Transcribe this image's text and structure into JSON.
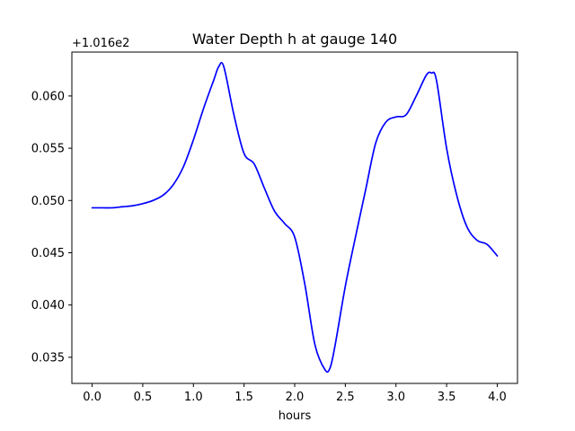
{
  "chart_data": {
    "type": "line",
    "title": "Water Depth h at gauge 140",
    "xlabel": "hours",
    "ylabel": "",
    "y_offset_label": "+1.016e2",
    "xlim": [
      -0.2,
      4.2
    ],
    "ylim": [
      0.0325,
      0.0642
    ],
    "x_ticks": [
      0.0,
      0.5,
      1.0,
      1.5,
      2.0,
      2.5,
      3.0,
      3.5,
      4.0
    ],
    "x_tick_labels": [
      "0.0",
      "0.5",
      "1.0",
      "1.5",
      "2.0",
      "2.5",
      "3.0",
      "3.5",
      "4.0"
    ],
    "y_ticks": [
      0.035,
      0.04,
      0.045,
      0.05,
      0.055,
      0.06
    ],
    "y_tick_labels": [
      "0.035",
      "0.040",
      "0.045",
      "0.050",
      "0.055",
      "0.060"
    ],
    "grid": false,
    "series": [
      {
        "color": "#0000ff",
        "x": [
          0.0,
          0.1,
          0.2,
          0.3,
          0.4,
          0.5,
          0.6,
          0.7,
          0.8,
          0.9,
          1.0,
          1.1,
          1.2,
          1.25,
          1.3,
          1.4,
          1.5,
          1.6,
          1.7,
          1.8,
          1.9,
          2.0,
          2.1,
          2.2,
          2.3,
          2.35,
          2.4,
          2.5,
          2.6,
          2.7,
          2.8,
          2.9,
          3.0,
          3.1,
          3.2,
          3.3,
          3.35,
          3.4,
          3.5,
          3.6,
          3.7,
          3.8,
          3.9,
          4.0
        ],
        "y": [
          0.0493,
          0.0493,
          0.0493,
          0.0494,
          0.0495,
          0.0497,
          0.05,
          0.0505,
          0.0515,
          0.0532,
          0.0558,
          0.0588,
          0.0615,
          0.0628,
          0.0628,
          0.0582,
          0.0545,
          0.0535,
          0.0512,
          0.049,
          0.0478,
          0.0465,
          0.042,
          0.0362,
          0.0338,
          0.034,
          0.0362,
          0.0418,
          0.0465,
          0.051,
          0.0555,
          0.0575,
          0.058,
          0.0582,
          0.06,
          0.062,
          0.0622,
          0.0615,
          0.055,
          0.0505,
          0.0475,
          0.0462,
          0.0458,
          0.0447
        ]
      }
    ]
  }
}
